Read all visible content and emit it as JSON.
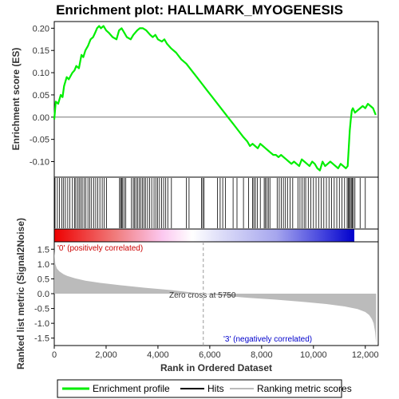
{
  "chart_data": {
    "type": "line",
    "title": "Enrichment plot: HALLMARK_MYOGENESIS",
    "es_panel": {
      "ylabel": "Enrichment score (ES)",
      "ylim": [
        -0.135,
        0.215
      ],
      "yticks": [
        -0.1,
        -0.05,
        0.0,
        0.05,
        0.1,
        0.15,
        0.2
      ],
      "ytick_labels": [
        "-0.10",
        "-0.05",
        "0.00",
        "0.05",
        "0.10",
        "0.15",
        "0.20"
      ],
      "series": [
        {
          "name": "Enrichment profile",
          "x": [
            0,
            60,
            150,
            250,
            320,
            380,
            480,
            560,
            700,
            780,
            850,
            950,
            1050,
            1120,
            1200,
            1300,
            1400,
            1500,
            1580,
            1650,
            1730,
            1800,
            1900,
            2000,
            2100,
            2250,
            2400,
            2500,
            2600,
            2700,
            2800,
            2950,
            3050,
            3200,
            3300,
            3420,
            3550,
            3700,
            3800,
            3900,
            4000,
            4150,
            4250,
            4350,
            4500,
            4700,
            4900,
            5100,
            5300,
            5500,
            5700,
            5900,
            6100,
            6300,
            6500,
            6700,
            6900,
            7100,
            7300,
            7450,
            7550,
            7650,
            7750,
            7850,
            7950,
            8050,
            8150,
            8250,
            8350,
            8450,
            8550,
            8650,
            8750,
            8850,
            8950,
            9050,
            9150,
            9250,
            9350,
            9450,
            9550,
            9650,
            9750,
            9850,
            9950,
            10050,
            10150,
            10250,
            10350,
            10450,
            10550,
            10650,
            10750,
            10850,
            10950,
            11050,
            11150,
            11250,
            11320,
            11360,
            11400,
            11440,
            11480,
            11520,
            11600,
            11700,
            11800,
            11900,
            12000,
            12100,
            12200,
            12300,
            12400
          ],
          "y": [
            -0.005,
            0.035,
            0.03,
            0.05,
            0.045,
            0.07,
            0.09,
            0.085,
            0.1,
            0.105,
            0.115,
            0.11,
            0.14,
            0.135,
            0.15,
            0.16,
            0.175,
            0.18,
            0.19,
            0.2,
            0.205,
            0.2,
            0.205,
            0.195,
            0.19,
            0.18,
            0.175,
            0.195,
            0.2,
            0.19,
            0.18,
            0.175,
            0.185,
            0.195,
            0.2,
            0.2,
            0.195,
            0.185,
            0.18,
            0.185,
            0.175,
            0.17,
            0.175,
            0.165,
            0.155,
            0.145,
            0.13,
            0.12,
            0.105,
            0.09,
            0.075,
            0.06,
            0.045,
            0.03,
            0.015,
            0.0,
            -0.015,
            -0.03,
            -0.045,
            -0.055,
            -0.065,
            -0.06,
            -0.065,
            -0.07,
            -0.06,
            -0.065,
            -0.07,
            -0.075,
            -0.08,
            -0.085,
            -0.085,
            -0.09,
            -0.085,
            -0.09,
            -0.095,
            -0.1,
            -0.105,
            -0.1,
            -0.105,
            -0.11,
            -0.095,
            -0.1,
            -0.105,
            -0.11,
            -0.1,
            -0.105,
            -0.115,
            -0.12,
            -0.1,
            -0.11,
            -0.105,
            -0.1,
            -0.105,
            -0.11,
            -0.115,
            -0.105,
            -0.11,
            -0.115,
            -0.11,
            -0.07,
            -0.03,
            -0.005,
            0.015,
            0.02,
            0.01,
            0.015,
            0.02,
            0.025,
            0.02,
            0.03,
            0.025,
            0.02,
            0.005
          ],
          "color": "#00ee00"
        }
      ]
    },
    "hits_panel": {
      "name": "Hits",
      "hit_ranks": [
        30,
        120,
        200,
        290,
        360,
        430,
        520,
        600,
        700,
        780,
        830,
        900,
        960,
        1020,
        1080,
        1150,
        1220,
        1300,
        1370,
        1440,
        1520,
        1600,
        1680,
        1760,
        1850,
        1930,
        2020,
        2520,
        2560,
        2600,
        2640,
        2700,
        2760,
        2980,
        3050,
        3100,
        3160,
        3220,
        3280,
        3340,
        3400,
        3460,
        3520,
        3600,
        3680,
        3760,
        3850,
        3920,
        3990,
        4060,
        4140,
        4220,
        4300,
        4380,
        4520,
        5100,
        5200,
        5680,
        5730,
        5780,
        6300,
        6400,
        6500,
        6600,
        6900,
        7050,
        7300,
        7500,
        7650,
        7700,
        7760,
        7840,
        7950,
        8100,
        8140,
        8200,
        8260,
        8320,
        8600,
        8680,
        8760,
        8840,
        8920,
        9000,
        9100,
        9200,
        9400,
        9480,
        9560,
        9640,
        9700,
        9800,
        9900,
        10000,
        10100,
        10200,
        10300,
        10400,
        10500,
        10600,
        10700,
        10800,
        10900,
        11000,
        11100,
        11200,
        11300,
        11340,
        11380,
        11420,
        11460,
        11500,
        11540,
        11600,
        11800,
        12000
      ]
    },
    "ranked_metric_panel": {
      "ylabel": "Ranked list metric (Signal2Noise)",
      "xlabel": "Rank in Ordered Dataset",
      "ylim": [
        -1.75,
        1.75
      ],
      "yticks": [
        -1.5,
        -1.0,
        -0.5,
        0.0,
        0.5,
        1.0,
        1.5
      ],
      "ytick_labels": [
        "-1.5",
        "-1.0",
        "-0.5",
        "0.0",
        "0.5",
        "1.0",
        "1.5"
      ],
      "xlim": [
        0,
        12500
      ],
      "xticks": [
        0,
        2000,
        4000,
        6000,
        8000,
        10000,
        12000
      ],
      "xtick_labels": [
        "0",
        "2,000",
        "4,000",
        "6,000",
        "8,000",
        "10,000",
        "12,000"
      ],
      "metric_x": [
        0,
        40,
        100,
        200,
        350,
        500,
        800,
        1200,
        1800,
        2500,
        3500,
        4500,
        5200,
        5750,
        6500,
        7500,
        8500,
        9500,
        10500,
        11200,
        11700,
        12000,
        12150,
        12250,
        12320,
        12380,
        12420
      ],
      "metric_y": [
        1.45,
        1.0,
        0.85,
        0.75,
        0.66,
        0.6,
        0.52,
        0.44,
        0.36,
        0.29,
        0.2,
        0.12,
        0.05,
        0.0,
        -0.07,
        -0.14,
        -0.2,
        -0.27,
        -0.35,
        -0.43,
        -0.52,
        -0.62,
        -0.72,
        -0.85,
        -1.0,
        -1.3,
        -1.7
      ],
      "zero_cross_rank": 5750,
      "zero_cross_label": "Zero cross at 5750",
      "positive_label": "'0' (positively correlated)",
      "negative_label": "'3' (negatively correlated)"
    },
    "legend": {
      "placement": "bottom",
      "entries": [
        {
          "name": "Enrichment profile",
          "color": "#00ee00"
        },
        {
          "name": "Hits",
          "color": "#000000"
        },
        {
          "name": "Ranking metric scores",
          "color": "#bbbbbb"
        }
      ]
    },
    "colors": {
      "positive": "#ee0000",
      "negative": "#0000ee",
      "metric_fill": "#bbbbbb",
      "zero_line": "#999999"
    }
  }
}
